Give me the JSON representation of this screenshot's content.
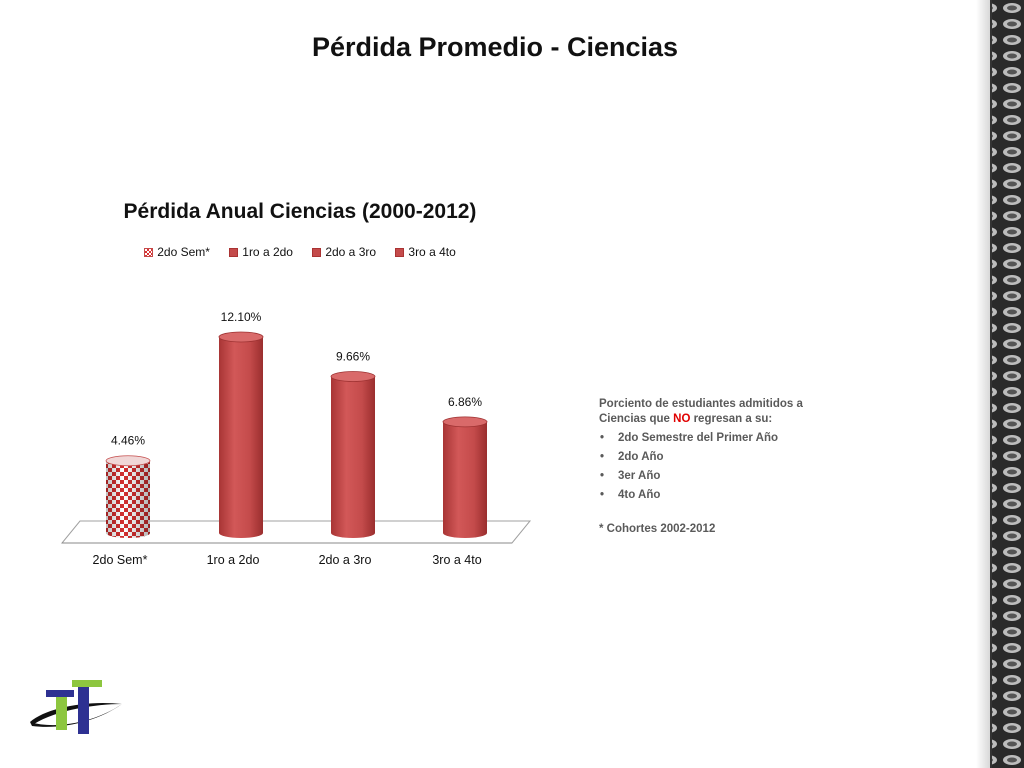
{
  "slide_title": "Pérdida Promedio - Ciencias",
  "note": {
    "line1": "Porciento de estudiantes admitidos a",
    "line2_before": "Ciencias que ",
    "line2_highlight": "NO",
    "line2_after": " regresan a su:",
    "bullet_char": "•",
    "bullets": [
      "2do Semestre del Primer Año",
      "2do Año",
      "3er Año",
      "4to Año"
    ],
    "cohort": "* Cohortes 2002-2012"
  },
  "colors": {
    "bar": "#c44b4b",
    "bar_light": "#d96a6a",
    "bar_dark": "#9e3232",
    "checker": "#d32f2f"
  },
  "chart_data": {
    "type": "bar",
    "style": "3d-cylinder",
    "title": "Pérdida Anual Ciencias (2000-2012)",
    "categories": [
      "2do Sem*",
      "1ro a 2do",
      "2do a 3ro",
      "3ro a 4to"
    ],
    "values": [
      4.46,
      12.1,
      9.66,
      6.86
    ],
    "data_labels": [
      "4.46%",
      "12.10%",
      "9.66%",
      "6.86%"
    ],
    "legend": [
      "2do Sem*",
      "1ro a 2do",
      "2do a 3ro",
      "3ro a 4to"
    ],
    "legend_position": "top",
    "patterns": [
      "checkered",
      "solid",
      "solid",
      "solid"
    ],
    "ylim": [
      0,
      14
    ],
    "grid": false
  }
}
